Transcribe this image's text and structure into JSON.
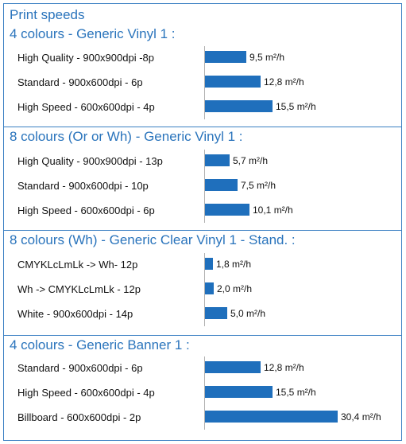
{
  "page_title": "Print speeds",
  "chart_data": {
    "type": "bar",
    "orientation": "horizontal",
    "unit": "m²/h",
    "groups": [
      {
        "title": "4 colours - Generic Vinyl 1 :",
        "categories": [
          "High Quality - 900x900dpi -8p",
          "Standard - 900x600dpi - 6p",
          "High Speed - 600x600dpi - 4p"
        ],
        "values": [
          9.5,
          12.8,
          15.5
        ],
        "value_labels": [
          "9,5 m²/h",
          "12,8 m²/h",
          "15,5 m²/h"
        ]
      },
      {
        "title": "8 colours (Or or Wh) - Generic Vinyl 1 :",
        "categories": [
          "High Quality - 900x900dpi - 13p",
          "Standard - 900x600dpi - 10p",
          "High Speed - 600x600dpi - 6p"
        ],
        "values": [
          5.7,
          7.5,
          10.1
        ],
        "value_labels": [
          "5,7 m²/h",
          "7,5 m²/h",
          "10,1 m²/h"
        ]
      },
      {
        "title": "8 colours (Wh) - Generic Clear Vinyl 1 - Stand. :",
        "categories": [
          "CMYKLcLmLk -> Wh- 12p",
          "Wh -> CMYKLcLmLk - 12p",
          "White - 900x600dpi - 14p"
        ],
        "values": [
          1.8,
          2.0,
          5.0
        ],
        "value_labels": [
          "1,8 m²/h",
          "2,0 m²/h",
          "5,0 m²/h"
        ]
      },
      {
        "title": "4 colours - Generic Banner 1 :",
        "categories": [
          "Standard - 900x600dpi - 6p",
          "High Speed - 600x600dpi - 4p",
          "Billboard - 600x600dpi - 2p"
        ],
        "values": [
          12.8,
          15.5,
          30.4
        ],
        "value_labels": [
          "12,8 m²/h",
          "15,5 m²/h",
          "30,4 m²/h"
        ]
      }
    ],
    "bar_color": "#1f6fbc",
    "title_color": "#2a74bc",
    "border_color": "#3b80c3"
  }
}
